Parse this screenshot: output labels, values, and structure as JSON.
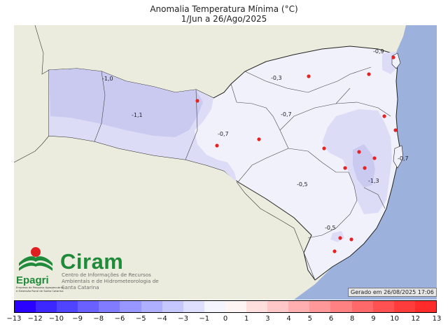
{
  "title": "Anomalia Temperatura Mínima (°C)",
  "subtitle": "1/Jun a 26/Ago/2025",
  "generated": "Gerado em 26/08/2025 17:06",
  "logos": {
    "epagri_name": "Epagri",
    "epagri_subtitle": "Empresa de Pesquisa Agropecuária e Extensão Rural de Santa Catarina",
    "ciram_name": "Ciram",
    "ciram_subtitle": "Centro de Informações de Recursos Ambientais e de Hidrometeorologia de Santa Catarina"
  },
  "colors": {
    "ocean": "#9cb2dc",
    "neighbor_land": "#ececde",
    "state_base": "#f1f1fb",
    "anomaly_minus_1": "#dcdcf7",
    "anomaly_minus_1_5": "#cacaf0",
    "station": "#e62222",
    "border": "#222222"
  },
  "region_values": [
    "-1,0",
    "-1,1",
    "-0,7",
    "-0,3",
    "-0,9",
    "-0,7",
    "-0,7",
    "-0,5",
    "-1,3",
    "-0,5"
  ],
  "stations_count_visible": 16,
  "colorbar": {
    "ticks": [
      "−13",
      "−12",
      "−10",
      "−9",
      "−8",
      "−6",
      "−5",
      "−4",
      "−3",
      "−1",
      "0",
      "1",
      "3",
      "4",
      "5",
      "6",
      "8",
      "9",
      "10",
      "12",
      "13"
    ],
    "colors": [
      "#2a00ff",
      "#3c27ff",
      "#5144ff",
      "#6960ff",
      "#817bff",
      "#9896ff",
      "#afafff",
      "#c7c7ff",
      "#dedeff",
      "#f4f4ff",
      "#fff4f4",
      "#ffdede",
      "#ffc7c7",
      "#ffafaf",
      "#ff9898",
      "#ff8181",
      "#ff6969",
      "#ff5151",
      "#ff3c3c",
      "#ff2a2a"
    ]
  }
}
